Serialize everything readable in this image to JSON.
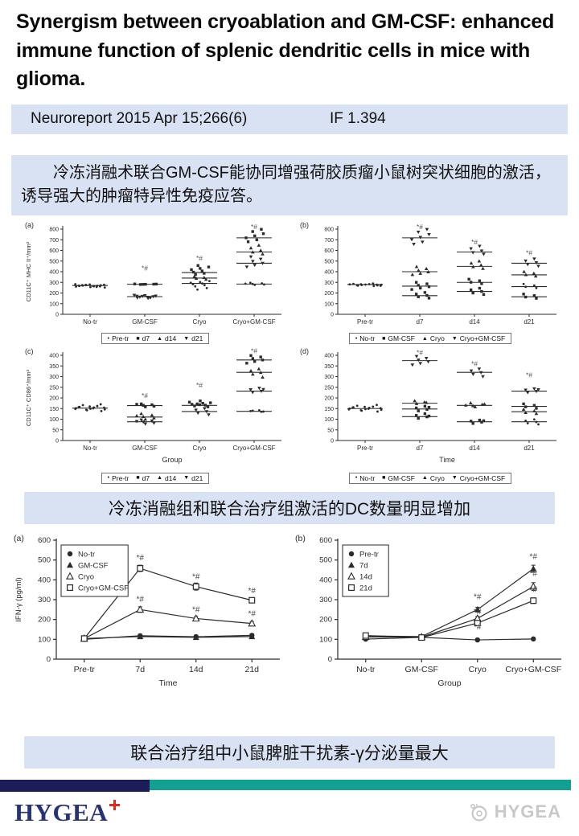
{
  "title": "Synergism between cryoablation and GM-CSF: enhanced immune function of splenic dendritic cells in mice with glioma.",
  "pub": {
    "journal": "Neuroreport 2015 Apr 15;266(6)",
    "impact_factor": "IF 1.394"
  },
  "abstract_cn": "冷冻消融术联合GM-CSF能协同增强荷胶质瘤小鼠树突状细胞的激活，诱导强大的肿瘤特异性免疫应答。",
  "caption_dc": "冷冻消融组和联合治疗组激活的DC数量明显增加",
  "caption_ifn": "联合治疗组中小鼠脾脏干扰素-γ分泌量最大",
  "footer": {
    "logo_text": "HYGEA",
    "watermark_text": "HYGEA"
  },
  "colors": {
    "bar-blue": "#d9e2f3",
    "stripe-navy": "#1c1c5a",
    "stripe-teal": "#12a093",
    "logo-navy": "#283274",
    "logo-red": "#e02a1e",
    "watermark-gray": "#c8c8c8",
    "ink": "#2b2b2b"
  },
  "chart_data": [
    {
      "id": "a",
      "type": "scatter",
      "panel_label": "(a)",
      "ylabel": "CD11C⁺ MHC II⁺/mm³",
      "xlabel": "",
      "ylim": [
        0,
        800
      ],
      "ystep": 100,
      "categories": [
        "No-tr",
        "GM-CSF",
        "Cryo",
        "Cryo+GM-CSF"
      ],
      "legend": [
        {
          "marker": "dot",
          "label": "Pre-tr"
        },
        {
          "marker": "square",
          "label": "d7"
        },
        {
          "marker": "triangle-up",
          "label": "d14"
        },
        {
          "marker": "triangle-down",
          "label": "d21"
        }
      ],
      "sig_label": "*#",
      "sig": [
        {
          "cat": 1,
          "y": 410
        },
        {
          "cat": 2,
          "y": 505
        },
        {
          "cat": 3,
          "y": 800
        }
      ],
      "clusters": [
        {
          "cat": 0,
          "line": 270,
          "spread": 20,
          "marker": "dot",
          "points": [
            252,
            256,
            260,
            263,
            266,
            268,
            270,
            272,
            274,
            277,
            280,
            283,
            265,
            269,
            258,
            273,
            262,
            276
          ]
        },
        {
          "cat": 1,
          "line": 282,
          "spread": 15,
          "marker": "square",
          "points": [
            280,
            283,
            281,
            284,
            282,
            285
          ]
        },
        {
          "cat": 1,
          "line": 166,
          "spread": 15,
          "marker": "triangle-down",
          "points": [
            150,
            155,
            159,
            163,
            166,
            169,
            172,
            176,
            180,
            161,
            171,
            157
          ]
        },
        {
          "cat": 2,
          "line": 392,
          "spread": 12,
          "marker": "square",
          "points": [
            458,
            444,
            431,
            419,
            407,
            396,
            385,
            374
          ]
        },
        {
          "cat": 2,
          "line": 340,
          "spread": 11,
          "marker": "triangle-up",
          "points": [
            354,
            345,
            337,
            328
          ]
        },
        {
          "cat": 2,
          "line": 290,
          "spread": 13,
          "marker": "dot",
          "points": [
            312,
            303,
            296,
            289,
            282,
            274,
            262,
            246,
            232
          ]
        },
        {
          "cat": 3,
          "line": 718,
          "spread": 12,
          "marker": "square",
          "points": [
            798,
            777,
            757,
            737,
            718,
            699,
            681
          ]
        },
        {
          "cat": 3,
          "line": 585,
          "spread": 11,
          "marker": "triangle-up",
          "points": [
            648,
            622,
            600,
            584,
            566
          ]
        },
        {
          "cat": 3,
          "line": 480,
          "spread": 11,
          "marker": "triangle-down",
          "points": [
            540,
            518,
            498,
            480,
            462,
            445
          ]
        },
        {
          "cat": 3,
          "line": 284,
          "spread": 13,
          "marker": "dot",
          "points": [
            296,
            290,
            285,
            280,
            276,
            288
          ]
        }
      ]
    },
    {
      "id": "b",
      "type": "scatter",
      "panel_label": "(b)",
      "ylabel": "",
      "xlabel": "",
      "ylim": [
        0,
        800
      ],
      "ystep": 100,
      "categories": [
        "Pre-tr",
        "d7",
        "d14",
        "d21"
      ],
      "legend": [
        {
          "marker": "dot",
          "label": "No-tr"
        },
        {
          "marker": "square",
          "label": "GM-CSF"
        },
        {
          "marker": "triangle-up",
          "label": "Cryo"
        },
        {
          "marker": "triangle-down",
          "label": "Cryo+GM-CSF"
        }
      ],
      "sig_label": "*#",
      "sig": [
        {
          "cat": 1,
          "y": 800
        },
        {
          "cat": 2,
          "y": 655
        },
        {
          "cat": 3,
          "y": 555
        }
      ],
      "clusters": [
        {
          "cat": 0,
          "line": 280,
          "spread": 22,
          "marker": "dot",
          "points": [
            266,
            269,
            272,
            275,
            277,
            279,
            281,
            283,
            286,
            289,
            273,
            278,
            282,
            268
          ]
        },
        {
          "cat": 1,
          "line": 718,
          "spread": 12,
          "marker": "triangle-down",
          "points": [
            798,
            772,
            749,
            723,
            701,
            679,
            659
          ]
        },
        {
          "cat": 1,
          "line": 400,
          "spread": 11,
          "marker": "triangle-up",
          "points": [
            447,
            428,
            412,
            398,
            384,
            372
          ]
        },
        {
          "cat": 1,
          "line": 265,
          "spread": 12,
          "marker": "square",
          "points": [
            300,
            286,
            272,
            259,
            246,
            233
          ]
        },
        {
          "cat": 1,
          "line": 175,
          "spread": 12,
          "marker": "square",
          "points": [
            205,
            190,
            177,
            164,
            152
          ]
        },
        {
          "cat": 2,
          "line": 585,
          "spread": 12,
          "marker": "triangle-down",
          "points": [
            640,
            616,
            596,
            580,
            565
          ]
        },
        {
          "cat": 2,
          "line": 450,
          "spread": 11,
          "marker": "triangle-up",
          "points": [
            500,
            480,
            462,
            446,
            430
          ]
        },
        {
          "cat": 2,
          "line": 300,
          "spread": 12,
          "marker": "square",
          "points": [
            330,
            315,
            301,
            288
          ]
        },
        {
          "cat": 2,
          "line": 215,
          "spread": 12,
          "marker": "square",
          "points": [
            245,
            230,
            215,
            200,
            186
          ]
        },
        {
          "cat": 3,
          "line": 480,
          "spread": 12,
          "marker": "triangle-down",
          "points": [
            520,
            501,
            485,
            468,
            452
          ]
        },
        {
          "cat": 3,
          "line": 370,
          "spread": 11,
          "marker": "triangle-up",
          "points": [
            400,
            385,
            371,
            358
          ]
        },
        {
          "cat": 3,
          "line": 260,
          "spread": 12,
          "marker": "dot",
          "points": [
            285,
            271,
            258,
            246
          ]
        },
        {
          "cat": 3,
          "line": 165,
          "spread": 12,
          "marker": "square",
          "points": [
            190,
            176,
            162,
            150
          ]
        }
      ]
    },
    {
      "id": "c",
      "type": "scatter",
      "panel_label": "(c)",
      "ylabel": "CD11C⁺ CD86⁺/mm³",
      "xlabel": "Group",
      "ylim": [
        0,
        400
      ],
      "ystep": 50,
      "categories": [
        "No-tr",
        "GM-CSF",
        "Cryo",
        "Cryo+GM-CSF"
      ],
      "legend": [
        {
          "marker": "dot",
          "label": "Pre-tr"
        },
        {
          "marker": "square",
          "label": "d7"
        },
        {
          "marker": "triangle-up",
          "label": "d14"
        },
        {
          "marker": "triangle-down",
          "label": "d21"
        }
      ],
      "sig_label": "*#",
      "sig": [
        {
          "cat": 1,
          "y": 200
        },
        {
          "cat": 2,
          "y": 250
        },
        {
          "cat": 3,
          "y": 410
        }
      ],
      "clusters": [
        {
          "cat": 0,
          "line": 152,
          "spread": 20,
          "marker": "dot",
          "points": [
            138,
            142,
            146,
            149,
            152,
            155,
            158,
            162,
            166,
            170,
            144,
            154,
            160,
            148,
            151,
            157
          ]
        },
        {
          "cat": 1,
          "line": 164,
          "spread": 12,
          "marker": "square",
          "points": [
            172,
            168,
            165,
            161,
            158,
            170
          ]
        },
        {
          "cat": 1,
          "line": 110,
          "spread": 12,
          "marker": "triangle-up",
          "points": [
            126,
            119,
            112,
            106,
            100,
            116
          ]
        },
        {
          "cat": 1,
          "line": 88,
          "spread": 12,
          "marker": "triangle-down",
          "points": [
            97,
            92,
            87,
            82,
            78,
            90
          ]
        },
        {
          "cat": 2,
          "line": 165,
          "spread": 15,
          "marker": "square",
          "points": [
            186,
            180,
            175,
            170,
            166,
            162,
            158,
            172,
            177,
            168
          ]
        },
        {
          "cat": 2,
          "line": 136,
          "spread": 12,
          "marker": "triangle-down",
          "points": [
            150,
            143,
            136,
            129,
            121
          ]
        },
        {
          "cat": 3,
          "line": 378,
          "spread": 11,
          "marker": "square",
          "points": [
            399,
            392,
            385,
            378,
            371,
            363
          ]
        },
        {
          "cat": 3,
          "line": 320,
          "spread": 11,
          "marker": "triangle-up",
          "points": [
            336,
            327,
            319,
            311,
            297
          ]
        },
        {
          "cat": 3,
          "line": 232,
          "spread": 12,
          "marker": "triangle-down",
          "points": [
            246,
            239,
            232,
            226,
            240
          ]
        },
        {
          "cat": 3,
          "line": 137,
          "spread": 12,
          "marker": "dot",
          "points": [
            142,
            138,
            135,
            140,
            136
          ]
        }
      ]
    },
    {
      "id": "d",
      "type": "scatter",
      "panel_label": "(d)",
      "ylabel": "",
      "xlabel": "Time",
      "ylim": [
        0,
        400
      ],
      "ystep": 50,
      "categories": [
        "Pre-tr",
        "d7",
        "d14",
        "d21"
      ],
      "legend": [
        {
          "marker": "dot",
          "label": "No-tr"
        },
        {
          "marker": "square",
          "label": "GM-CSF"
        },
        {
          "marker": "triangle-up",
          "label": "Cryo"
        },
        {
          "marker": "triangle-down",
          "label": "Cryo+GM-CSF"
        }
      ],
      "sig_label": "*#",
      "sig": [
        {
          "cat": 1,
          "y": 402
        },
        {
          "cat": 2,
          "y": 350
        },
        {
          "cat": 3,
          "y": 296
        }
      ],
      "clusters": [
        {
          "cat": 0,
          "line": 150,
          "spread": 22,
          "marker": "dot",
          "points": [
            136,
            140,
            144,
            147,
            150,
            153,
            156,
            159,
            163,
            167,
            142,
            152,
            158,
            146,
            149,
            155
          ]
        },
        {
          "cat": 1,
          "line": 375,
          "spread": 11,
          "marker": "triangle-down",
          "points": [
            395,
            386,
            378,
            370,
            362,
            355
          ]
        },
        {
          "cat": 1,
          "line": 175,
          "spread": 11,
          "marker": "triangle-up",
          "points": [
            186,
            180,
            173,
            178
          ]
        },
        {
          "cat": 1,
          "line": 148,
          "spread": 12,
          "marker": "square",
          "points": [
            161,
            153,
            146,
            139,
            156
          ]
        },
        {
          "cat": 1,
          "line": 112,
          "spread": 12,
          "marker": "square",
          "points": [
            126,
            118,
            111,
            104,
            115
          ]
        },
        {
          "cat": 2,
          "line": 320,
          "spread": 11,
          "marker": "triangle-down",
          "points": [
            336,
            327,
            319,
            311,
            300
          ]
        },
        {
          "cat": 2,
          "line": 165,
          "spread": 13,
          "marker": "triangle-up",
          "points": [
            176,
            169,
            163,
            171,
            158,
            166
          ]
        },
        {
          "cat": 2,
          "line": 88,
          "spread": 12,
          "marker": "square",
          "points": [
            96,
            91,
            86,
            80,
            93
          ]
        },
        {
          "cat": 3,
          "line": 232,
          "spread": 12,
          "marker": "triangle-down",
          "points": [
            243,
            237,
            231,
            225,
            239
          ]
        },
        {
          "cat": 3,
          "line": 160,
          "spread": 12,
          "marker": "square",
          "points": [
            172,
            165,
            158,
            151
          ]
        },
        {
          "cat": 3,
          "line": 135,
          "spread": 12,
          "marker": "triangle-up",
          "points": [
            146,
            139,
            131,
            126
          ]
        },
        {
          "cat": 3,
          "line": 88,
          "spread": 12,
          "marker": "dot",
          "points": [
            99,
            93,
            87,
            81,
            76
          ]
        }
      ]
    },
    {
      "id": "e",
      "type": "line",
      "panel_label": "(a)",
      "ylabel": "IFN-γ (pg/ml)",
      "xlabel": "Time",
      "ylim": [
        0,
        600
      ],
      "ystep": 100,
      "categories": [
        "Pre-tr",
        "7d",
        "14d",
        "21d"
      ],
      "series": [
        {
          "label": "No-tr",
          "marker": "circle-filled",
          "values": [
            100,
            118,
            113,
            120
          ],
          "err": [
            6,
            8,
            8,
            8
          ]
        },
        {
          "label": "GM-CSF",
          "marker": "triangle-filled",
          "values": [
            104,
            114,
            110,
            114
          ],
          "err": [
            6,
            6,
            6,
            6
          ]
        },
        {
          "label": "Cryo",
          "marker": "triangle-open",
          "values": [
            104,
            250,
            205,
            180
          ],
          "err": [
            8,
            14,
            10,
            10
          ]
        },
        {
          "label": "Cryo+GM-CSF",
          "marker": "square-open",
          "values": [
            104,
            458,
            366,
            297
          ],
          "err": [
            8,
            16,
            18,
            12
          ]
        }
      ],
      "sig_label": "*#",
      "sig": [
        {
          "x": 1,
          "y": 498
        },
        {
          "x": 2,
          "y": 404
        },
        {
          "x": 3,
          "y": 332
        },
        {
          "x": 1,
          "y": 290
        },
        {
          "x": 2,
          "y": 238
        },
        {
          "x": 3,
          "y": 216
        }
      ]
    },
    {
      "id": "f",
      "type": "line",
      "panel_label": "(b)",
      "ylabel": "",
      "xlabel": "Group",
      "ylim": [
        0,
        600
      ],
      "ystep": 100,
      "categories": [
        "No-tr",
        "GM-CSF",
        "Cryo",
        "Cryo+GM-CSF"
      ],
      "series": [
        {
          "label": "Pre-tr",
          "marker": "circle-filled",
          "values": [
            101,
            110,
            97,
            102
          ],
          "err": [
            6,
            6,
            6,
            6
          ]
        },
        {
          "label": "7d",
          "marker": "triangle-filled",
          "values": [
            117,
            114,
            250,
            456
          ],
          "err": [
            6,
            6,
            12,
            18
          ]
        },
        {
          "label": "14d",
          "marker": "triangle-open",
          "values": [
            112,
            111,
            205,
            366
          ],
          "err": [
            6,
            6,
            10,
            20
          ]
        },
        {
          "label": "21d",
          "marker": "square-open",
          "values": [
            119,
            109,
            182,
            295
          ],
          "err": [
            6,
            6,
            10,
            14
          ]
        }
      ],
      "sig_label": "*#",
      "sig": [
        {
          "x": 2,
          "y": 302
        },
        {
          "x": 2,
          "y": 228
        },
        {
          "x": 2,
          "y": 150
        },
        {
          "x": 3,
          "y": 505
        },
        {
          "x": 3,
          "y": 420
        },
        {
          "x": 3,
          "y": 338
        }
      ]
    }
  ]
}
